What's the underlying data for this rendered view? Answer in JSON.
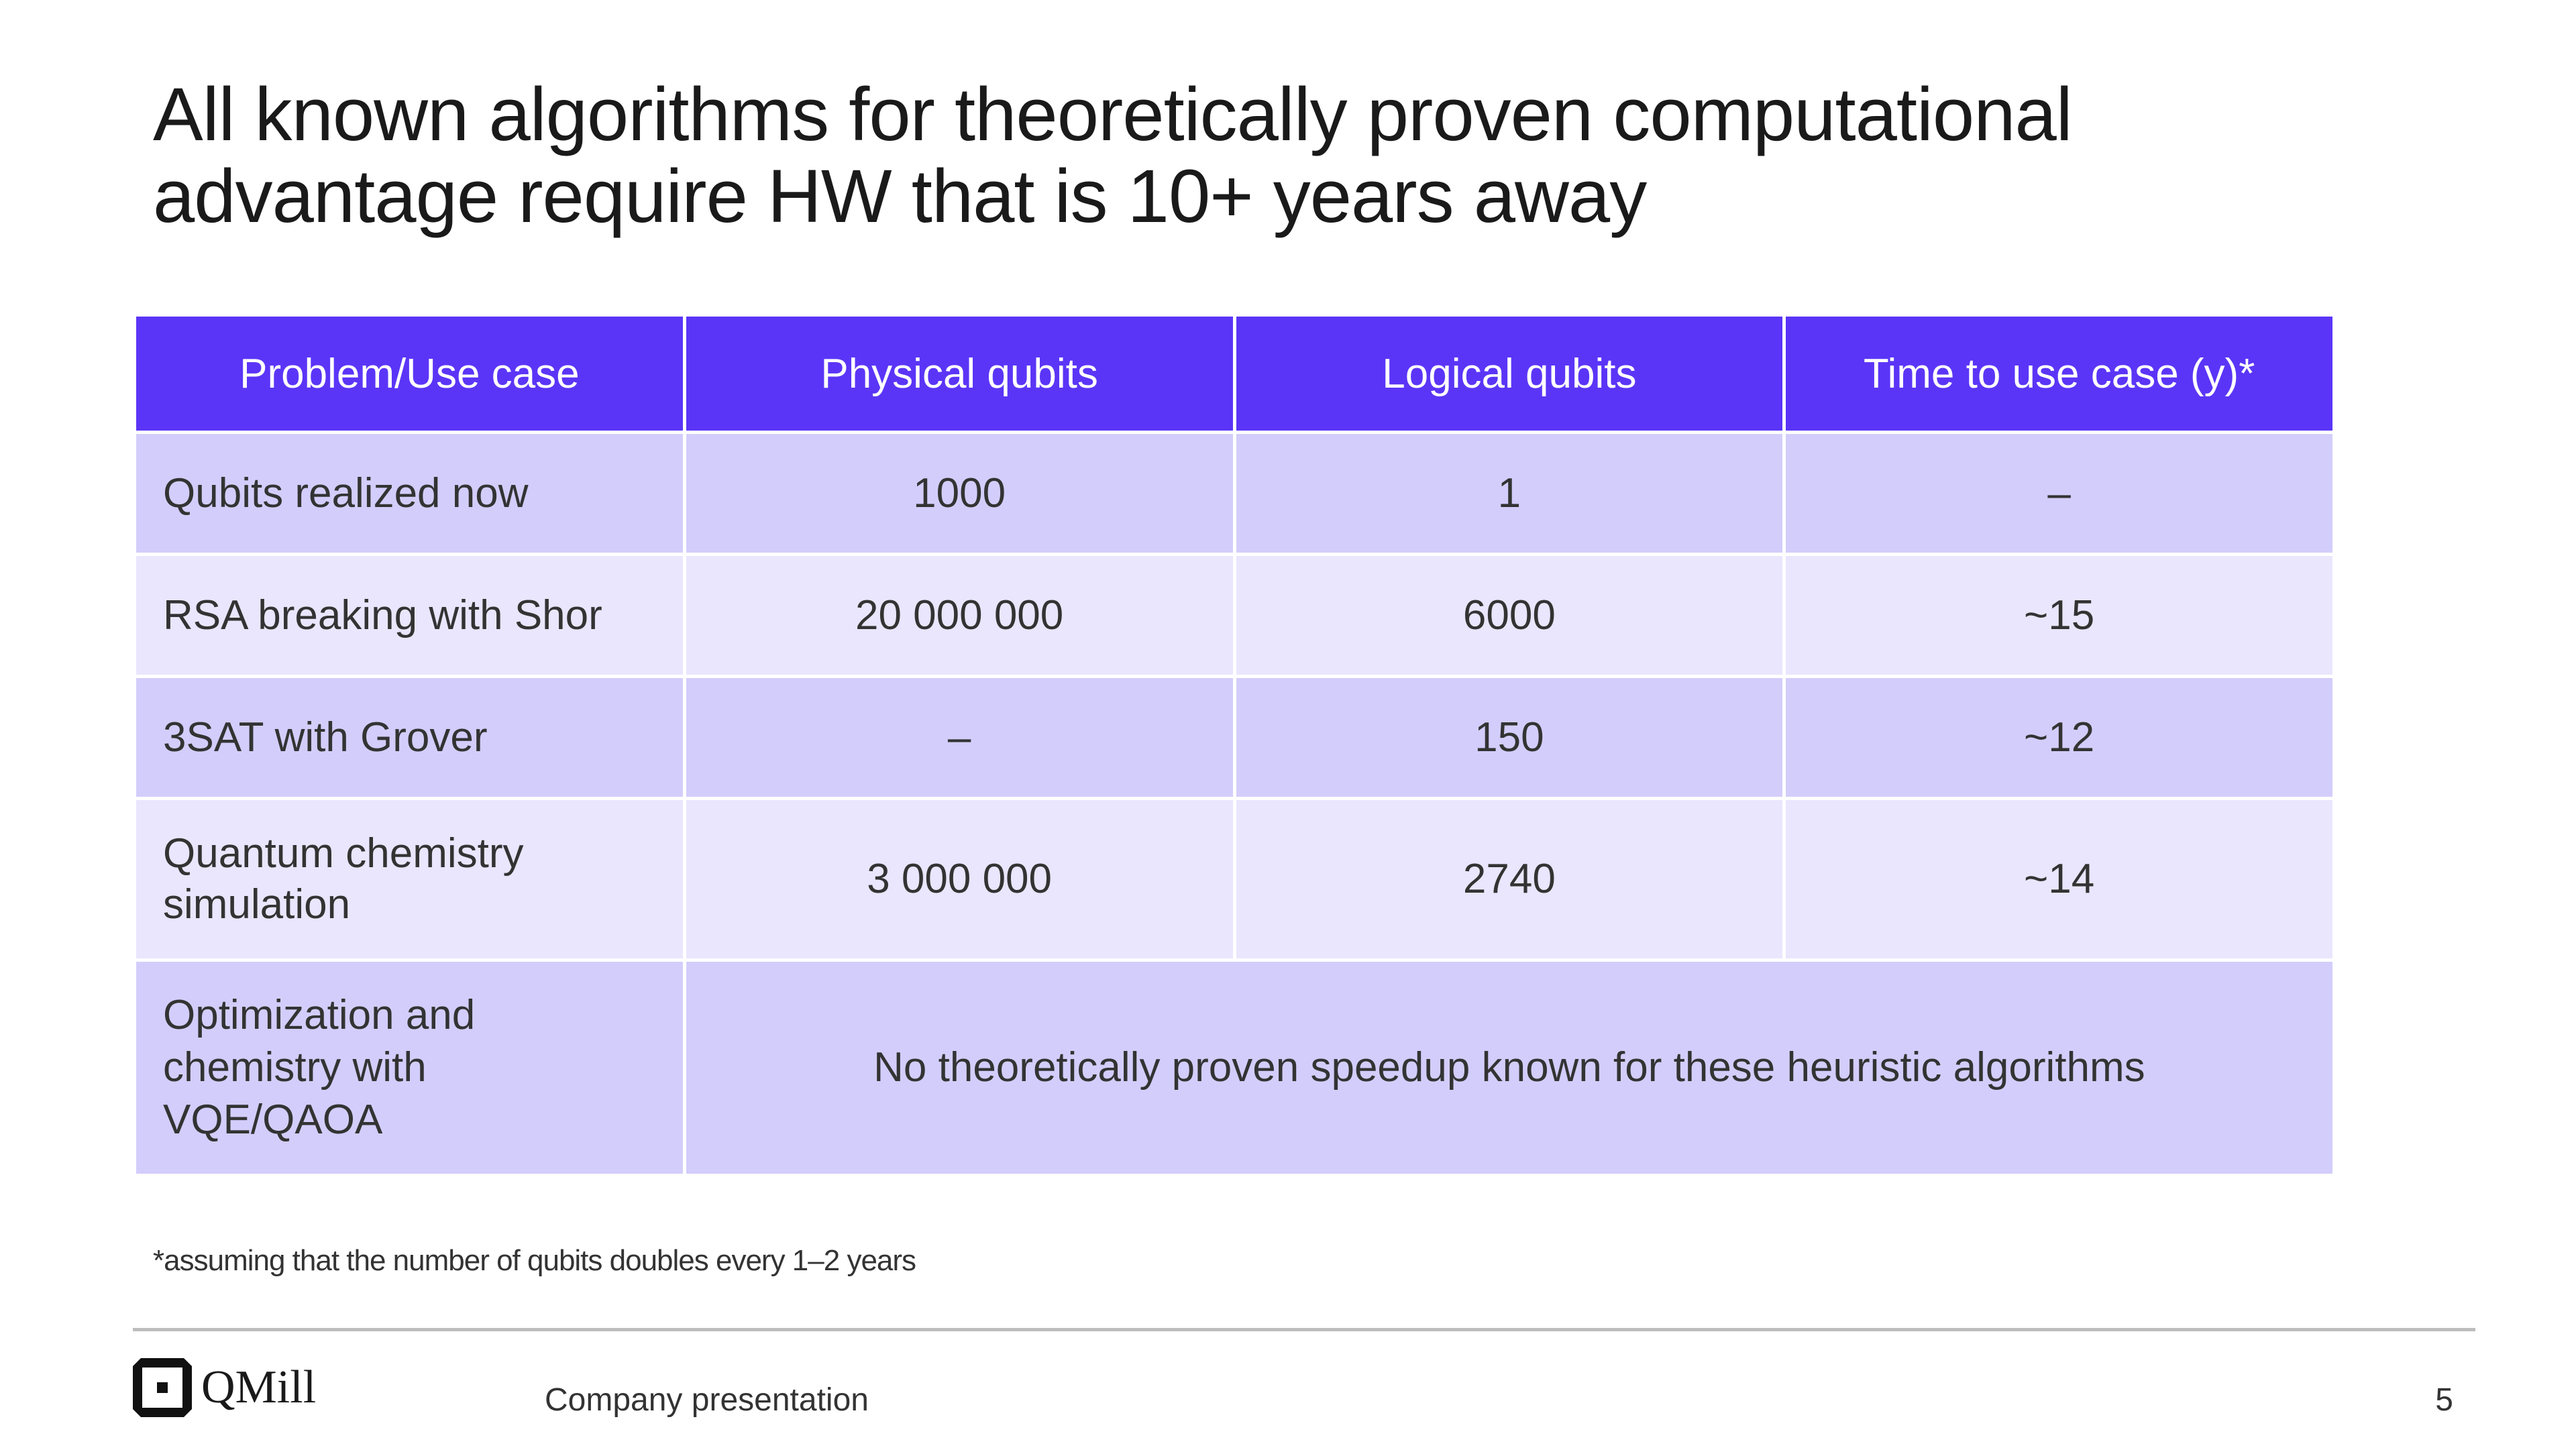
{
  "title": {
    "line1": "All known algorithms for theoretically proven computational",
    "line2": "advantage require HW that is 10+ years away"
  },
  "table": {
    "headers": [
      "Problem/Use case",
      "Physical qubits",
      "Logical qubits",
      "Time to use case (y)*"
    ],
    "rows": [
      {
        "use_case": "Qubits realized now",
        "physical": "1000",
        "logical": "1",
        "time": "–"
      },
      {
        "use_case": "RSA breaking with Shor",
        "physical": "20 000 000",
        "logical": "6000",
        "time": "~15"
      },
      {
        "use_case": "3SAT with Grover",
        "physical": "–",
        "logical": "150",
        "time": "~12"
      },
      {
        "use_case": "Quantum chemistry simulation",
        "physical": "3 000 000",
        "logical": "2740",
        "time": "~14"
      }
    ],
    "merged_row": {
      "use_case": "Optimization and chemistry with VQE/QAOA",
      "note": "No theoretically proven speedup known for these heuristic algorithms"
    }
  },
  "footnote": "*assuming that the number of qubits doubles every 1–2 years",
  "footer": {
    "logo_text": "QMill",
    "center_text": "Company presentation",
    "page_number": "5"
  },
  "colors": {
    "header_bg": "#5b35f7",
    "row_dark": "#d3cdfb",
    "row_light": "#e9e6fd"
  }
}
